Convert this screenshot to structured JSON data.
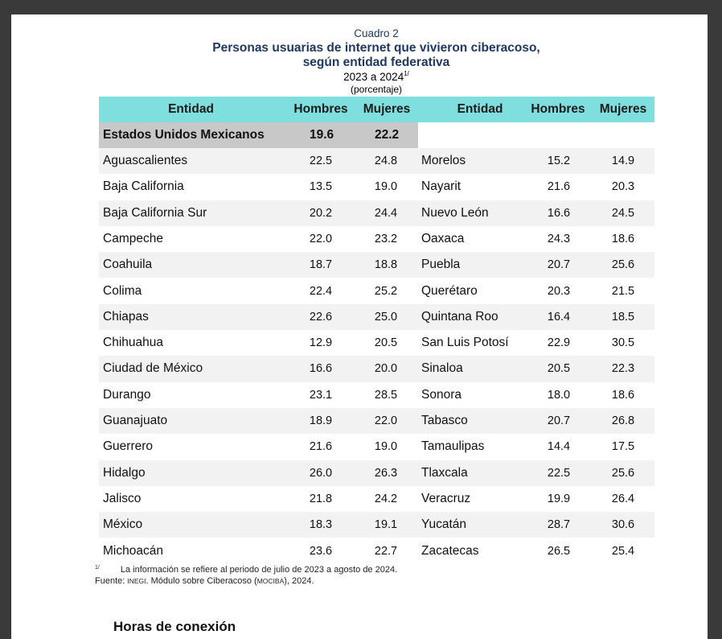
{
  "header": {
    "cuadro": "Cuadro 2",
    "title_line1": "Personas usuarias de internet que vivieron ciberacoso,",
    "title_line2": "según entidad federativa",
    "years": "2023 a 2024",
    "years_note": "1/",
    "unit": "(porcentaje)"
  },
  "columns": {
    "entidad": "Entidad",
    "hombres": "Hombres",
    "mujeres": "Mujeres"
  },
  "national": {
    "name": "Estados Unidos Mexicanos",
    "hombres": "19.6",
    "mujeres": "22.2"
  },
  "left_rows": [
    {
      "name": "Aguascalientes",
      "hombres": "22.5",
      "mujeres": "24.8"
    },
    {
      "name": "Baja California",
      "hombres": "13.5",
      "mujeres": "19.0"
    },
    {
      "name": "Baja California Sur",
      "hombres": "20.2",
      "mujeres": "24.4"
    },
    {
      "name": "Campeche",
      "hombres": "22.0",
      "mujeres": "23.2"
    },
    {
      "name": "Coahuila",
      "hombres": "18.7",
      "mujeres": "18.8"
    },
    {
      "name": "Colima",
      "hombres": "22.4",
      "mujeres": "25.2"
    },
    {
      "name": "Chiapas",
      "hombres": "22.6",
      "mujeres": "25.0"
    },
    {
      "name": "Chihuahua",
      "hombres": "12.9",
      "mujeres": "20.5"
    },
    {
      "name": "Ciudad de México",
      "hombres": "16.6",
      "mujeres": "20.0"
    },
    {
      "name": "Durango",
      "hombres": "23.1",
      "mujeres": "28.5"
    },
    {
      "name": "Guanajuato",
      "hombres": "18.9",
      "mujeres": "22.0"
    },
    {
      "name": "Guerrero",
      "hombres": "21.6",
      "mujeres": "19.0"
    },
    {
      "name": "Hidalgo",
      "hombres": "26.0",
      "mujeres": "26.3"
    },
    {
      "name": "Jalisco",
      "hombres": "21.8",
      "mujeres": "24.2"
    },
    {
      "name": "México",
      "hombres": "18.3",
      "mujeres": "19.1"
    },
    {
      "name": "Michoacán",
      "hombres": "23.6",
      "mujeres": "22.7"
    }
  ],
  "right_rows": [
    {
      "name": "Morelos",
      "hombres": "15.2",
      "mujeres": "14.9"
    },
    {
      "name": "Nayarit",
      "hombres": "21.6",
      "mujeres": "20.3"
    },
    {
      "name": "Nuevo León",
      "hombres": "16.6",
      "mujeres": "24.5"
    },
    {
      "name": "Oaxaca",
      "hombres": "24.3",
      "mujeres": "18.6"
    },
    {
      "name": "Puebla",
      "hombres": "20.7",
      "mujeres": "25.6"
    },
    {
      "name": "Querétaro",
      "hombres": "20.3",
      "mujeres": "21.5"
    },
    {
      "name": "Quintana Roo",
      "hombres": "16.4",
      "mujeres": "18.5"
    },
    {
      "name": "San Luis Potosí",
      "hombres": "22.9",
      "mujeres": "30.5"
    },
    {
      "name": "Sinaloa",
      "hombres": "20.5",
      "mujeres": "22.3"
    },
    {
      "name": "Sonora",
      "hombres": "18.0",
      "mujeres": "18.6"
    },
    {
      "name": "Tabasco",
      "hombres": "20.7",
      "mujeres": "26.8"
    },
    {
      "name": "Tamaulipas",
      "hombres": "14.4",
      "mujeres": "17.5"
    },
    {
      "name": "Tlaxcala",
      "hombres": "22.5",
      "mujeres": "25.6"
    },
    {
      "name": "Veracruz",
      "hombres": "19.9",
      "mujeres": "26.4"
    },
    {
      "name": "Yucatán",
      "hombres": "28.7",
      "mujeres": "30.6"
    },
    {
      "name": "Zacatecas",
      "hombres": "26.5",
      "mujeres": "25.4"
    }
  ],
  "footnotes": {
    "note_mark": "1/",
    "note_text": "La información se refiere al periodo de julio de 2023 a agosto de 2024.",
    "source_prefix": "Fuente:",
    "source_org": "INEGI",
    "source_mid": ". Módulo sobre Ciberacoso (",
    "source_acronym": "MOCIBA",
    "source_end": "), 2024."
  },
  "section_heading": "Horas de conexión"
}
